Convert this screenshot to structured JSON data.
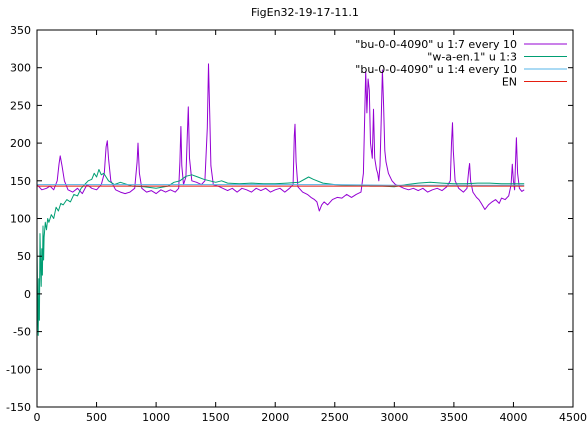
{
  "chart_data": {
    "type": "line",
    "title": "FigEn32-19-17-11.1",
    "xlim": [
      0,
      4500
    ],
    "ylim": [
      -150,
      350
    ],
    "xticks": [
      0,
      500,
      1000,
      1500,
      2000,
      2500,
      3000,
      3500,
      4000,
      4500
    ],
    "yticks": [
      -150,
      -100,
      -50,
      0,
      50,
      100,
      150,
      200,
      250,
      300,
      350
    ],
    "grid": false,
    "legend_position": "top-right",
    "series": [
      {
        "name": "\"bu-0-0-4090\" u 1:7 every 10",
        "color": "#9400d3",
        "points": [
          [
            0,
            145
          ],
          [
            40,
            138
          ],
          [
            80,
            140
          ],
          [
            110,
            143
          ],
          [
            140,
            138
          ],
          [
            170,
            150
          ],
          [
            185,
            172
          ],
          [
            195,
            183
          ],
          [
            210,
            170
          ],
          [
            230,
            150
          ],
          [
            260,
            138
          ],
          [
            300,
            135
          ],
          [
            340,
            140
          ],
          [
            380,
            133
          ],
          [
            420,
            145
          ],
          [
            460,
            140
          ],
          [
            500,
            138
          ],
          [
            540,
            145
          ],
          [
            565,
            160
          ],
          [
            580,
            195
          ],
          [
            590,
            203
          ],
          [
            600,
            180
          ],
          [
            620,
            150
          ],
          [
            660,
            138
          ],
          [
            700,
            135
          ],
          [
            740,
            133
          ],
          [
            780,
            135
          ],
          [
            820,
            140
          ],
          [
            840,
            175
          ],
          [
            848,
            200
          ],
          [
            860,
            160
          ],
          [
            880,
            140
          ],
          [
            920,
            135
          ],
          [
            960,
            137
          ],
          [
            1000,
            133
          ],
          [
            1040,
            138
          ],
          [
            1080,
            135
          ],
          [
            1120,
            138
          ],
          [
            1160,
            135
          ],
          [
            1190,
            140
          ],
          [
            1200,
            175
          ],
          [
            1208,
            222
          ],
          [
            1216,
            170
          ],
          [
            1230,
            145
          ],
          [
            1250,
            155
          ],
          [
            1262,
            210
          ],
          [
            1270,
            248
          ],
          [
            1280,
            180
          ],
          [
            1300,
            150
          ],
          [
            1340,
            148
          ],
          [
            1380,
            145
          ],
          [
            1410,
            150
          ],
          [
            1430,
            220
          ],
          [
            1440,
            305
          ],
          [
            1450,
            240
          ],
          [
            1460,
            170
          ],
          [
            1480,
            145
          ],
          [
            1520,
            143
          ],
          [
            1560,
            140
          ],
          [
            1600,
            137
          ],
          [
            1640,
            140
          ],
          [
            1680,
            135
          ],
          [
            1720,
            140
          ],
          [
            1760,
            138
          ],
          [
            1800,
            135
          ],
          [
            1840,
            140
          ],
          [
            1880,
            137
          ],
          [
            1920,
            140
          ],
          [
            1960,
            135
          ],
          [
            2000,
            138
          ],
          [
            2040,
            140
          ],
          [
            2080,
            135
          ],
          [
            2120,
            140
          ],
          [
            2150,
            145
          ],
          [
            2160,
            210
          ],
          [
            2166,
            225
          ],
          [
            2175,
            175
          ],
          [
            2190,
            142
          ],
          [
            2230,
            135
          ],
          [
            2270,
            132
          ],
          [
            2300,
            128
          ],
          [
            2330,
            125
          ],
          [
            2350,
            122
          ],
          [
            2370,
            110
          ],
          [
            2390,
            118
          ],
          [
            2410,
            122
          ],
          [
            2440,
            118
          ],
          [
            2480,
            125
          ],
          [
            2520,
            128
          ],
          [
            2560,
            127
          ],
          [
            2600,
            132
          ],
          [
            2640,
            128
          ],
          [
            2680,
            132
          ],
          [
            2720,
            135
          ],
          [
            2740,
            160
          ],
          [
            2750,
            230
          ],
          [
            2760,
            295
          ],
          [
            2770,
            240
          ],
          [
            2780,
            285
          ],
          [
            2790,
            270
          ],
          [
            2800,
            200
          ],
          [
            2815,
            180
          ],
          [
            2825,
            245
          ],
          [
            2835,
            180
          ],
          [
            2850,
            165
          ],
          [
            2860,
            160
          ],
          [
            2870,
            150
          ],
          [
            2880,
            170
          ],
          [
            2890,
            230
          ],
          [
            2900,
            297
          ],
          [
            2910,
            250
          ],
          [
            2920,
            190
          ],
          [
            2930,
            175
          ],
          [
            2950,
            160
          ],
          [
            2980,
            150
          ],
          [
            3010,
            145
          ],
          [
            3040,
            143
          ],
          [
            3080,
            140
          ],
          [
            3120,
            138
          ],
          [
            3160,
            140
          ],
          [
            3200,
            137
          ],
          [
            3240,
            140
          ],
          [
            3280,
            135
          ],
          [
            3320,
            138
          ],
          [
            3360,
            140
          ],
          [
            3400,
            137
          ],
          [
            3440,
            142
          ],
          [
            3470,
            150
          ],
          [
            3480,
            200
          ],
          [
            3488,
            227
          ],
          [
            3495,
            190
          ],
          [
            3510,
            150
          ],
          [
            3540,
            140
          ],
          [
            3580,
            135
          ],
          [
            3610,
            140
          ],
          [
            3625,
            165
          ],
          [
            3632,
            173
          ],
          [
            3640,
            150
          ],
          [
            3660,
            135
          ],
          [
            3690,
            128
          ],
          [
            3710,
            125
          ],
          [
            3730,
            120
          ],
          [
            3760,
            112
          ],
          [
            3790,
            118
          ],
          [
            3820,
            122
          ],
          [
            3850,
            125
          ],
          [
            3880,
            120
          ],
          [
            3900,
            127
          ],
          [
            3930,
            125
          ],
          [
            3960,
            130
          ],
          [
            3980,
            145
          ],
          [
            3990,
            172
          ],
          [
            4000,
            150
          ],
          [
            4010,
            138
          ],
          [
            4020,
            185
          ],
          [
            4025,
            207
          ],
          [
            4035,
            160
          ],
          [
            4050,
            140
          ],
          [
            4070,
            136
          ],
          [
            4090,
            138
          ]
        ]
      },
      {
        "name": "\"w-a-en.1\" u 1:3",
        "color": "#009e73",
        "points": [
          [
            0,
            65
          ],
          [
            5,
            -10
          ],
          [
            10,
            -55
          ],
          [
            15,
            20
          ],
          [
            20,
            -35
          ],
          [
            25,
            80
          ],
          [
            30,
            40
          ],
          [
            35,
            10
          ],
          [
            40,
            60
          ],
          [
            45,
            25
          ],
          [
            50,
            90
          ],
          [
            55,
            45
          ],
          [
            60,
            75
          ],
          [
            70,
            95
          ],
          [
            80,
            85
          ],
          [
            90,
            100
          ],
          [
            100,
            95
          ],
          [
            120,
            105
          ],
          [
            140,
            100
          ],
          [
            160,
            115
          ],
          [
            180,
            110
          ],
          [
            200,
            120
          ],
          [
            220,
            118
          ],
          [
            250,
            125
          ],
          [
            280,
            122
          ],
          [
            310,
            132
          ],
          [
            340,
            130
          ],
          [
            370,
            140
          ],
          [
            400,
            145
          ],
          [
            430,
            150
          ],
          [
            460,
            152
          ],
          [
            480,
            160
          ],
          [
            500,
            155
          ],
          [
            520,
            165
          ],
          [
            540,
            158
          ],
          [
            560,
            160
          ],
          [
            580,
            155
          ],
          [
            600,
            150
          ],
          [
            650,
            145
          ],
          [
            700,
            148
          ],
          [
            800,
            143
          ],
          [
            900,
            142
          ],
          [
            1000,
            140
          ],
          [
            1100,
            143
          ],
          [
            1150,
            148
          ],
          [
            1200,
            150
          ],
          [
            1250,
            156
          ],
          [
            1300,
            158
          ],
          [
            1350,
            155
          ],
          [
            1400,
            152
          ],
          [
            1450,
            150
          ],
          [
            1500,
            148
          ],
          [
            1550,
            150
          ],
          [
            1600,
            147
          ],
          [
            1700,
            146
          ],
          [
            1800,
            147
          ],
          [
            1900,
            146
          ],
          [
            2000,
            146
          ],
          [
            2100,
            147
          ],
          [
            2200,
            148
          ],
          [
            2280,
            155
          ],
          [
            2320,
            152
          ],
          [
            2400,
            147
          ],
          [
            2500,
            145
          ],
          [
            2600,
            144
          ],
          [
            2700,
            144
          ],
          [
            2800,
            143
          ],
          [
            2900,
            143
          ],
          [
            3000,
            142
          ],
          [
            3100,
            145
          ],
          [
            3200,
            147
          ],
          [
            3300,
            148
          ],
          [
            3400,
            147
          ],
          [
            3500,
            146
          ],
          [
            3600,
            146
          ],
          [
            3700,
            147
          ],
          [
            3800,
            147
          ],
          [
            3900,
            146
          ],
          [
            4000,
            146
          ],
          [
            4090,
            146
          ]
        ]
      },
      {
        "name": "\"bu-0-0-4090\" u 1:4 every 10",
        "color": "#56b4e9",
        "points": [
          [
            0,
            145
          ],
          [
            500,
            145
          ],
          [
            1000,
            145
          ],
          [
            1500,
            145
          ],
          [
            2000,
            145
          ],
          [
            2500,
            145
          ],
          [
            3000,
            144
          ],
          [
            3500,
            144
          ],
          [
            4090,
            144
          ]
        ]
      },
      {
        "name": "EN",
        "color": "#e51e10",
        "points": [
          [
            0,
            143
          ],
          [
            4090,
            143
          ]
        ]
      }
    ]
  }
}
